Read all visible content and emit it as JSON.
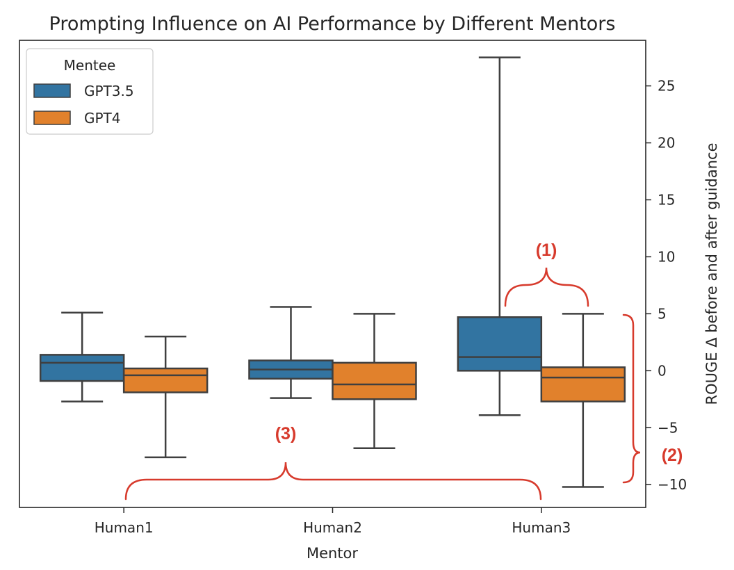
{
  "chart_data": {
    "type": "box",
    "title": "Prompting Influence on AI Performance by Different Mentors",
    "xlabel": "Mentor",
    "ylabel": "ROUGE Δ before and after guidance",
    "y_axis_side": "right",
    "ylim": [
      -12.0,
      29.0
    ],
    "yticks": [
      25,
      20,
      15,
      10,
      5,
      0,
      -5,
      -10
    ],
    "ytick_labels": [
      "25",
      "20",
      "15",
      "10",
      "5",
      "0",
      "−5",
      "−10"
    ],
    "categories": [
      "Human1",
      "Human2",
      "Human3"
    ],
    "legend": {
      "title": "Mentee",
      "location": "upper-left",
      "entries": [
        "GPT3.5",
        "GPT4"
      ]
    },
    "series": [
      {
        "name": "GPT3.5",
        "color": "#3274a1",
        "boxes": [
          {
            "category": "Human1",
            "whisker_low": -2.7,
            "q1": -0.9,
            "median": 0.7,
            "q3": 1.4,
            "whisker_high": 5.1
          },
          {
            "category": "Human2",
            "whisker_low": -2.4,
            "q1": -0.7,
            "median": 0.1,
            "q3": 0.9,
            "whisker_high": 5.6
          },
          {
            "category": "Human3",
            "whisker_low": -3.9,
            "q1": 0.0,
            "median": 1.2,
            "q3": 4.7,
            "whisker_high": 27.5
          }
        ]
      },
      {
        "name": "GPT4",
        "color": "#e1812c",
        "boxes": [
          {
            "category": "Human1",
            "whisker_low": -7.6,
            "q1": -1.9,
            "median": -0.4,
            "q3": 0.2,
            "whisker_high": 3.0
          },
          {
            "category": "Human2",
            "whisker_low": -6.8,
            "q1": -2.5,
            "median": -1.2,
            "q3": 0.7,
            "whisker_high": 5.0
          },
          {
            "category": "Human3",
            "whisker_low": -10.2,
            "q1": -2.7,
            "median": -0.6,
            "q3": 0.3,
            "whisker_high": 5.0
          }
        ]
      }
    ],
    "annotations": [
      {
        "label": "(1)",
        "target": "Human3 GPT3.5 vs GPT4 boxes",
        "color": "#d73a2c"
      },
      {
        "label": "(2)",
        "target": "y-range from -10 to 5",
        "color": "#d73a2c"
      },
      {
        "label": "(3)",
        "target": "Human1 to Human3",
        "color": "#d73a2c"
      }
    ]
  }
}
